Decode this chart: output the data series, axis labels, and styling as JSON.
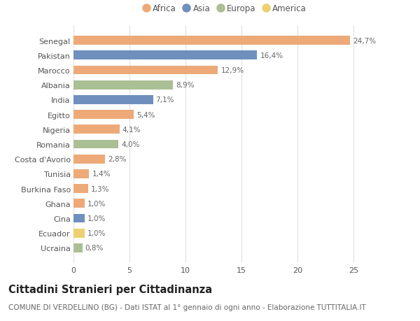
{
  "countries": [
    "Ucraina",
    "Ecuador",
    "Cina",
    "Ghana",
    "Burkina Faso",
    "Tunisia",
    "Costa d'Avorio",
    "Romania",
    "Nigeria",
    "Egitto",
    "India",
    "Albania",
    "Marocco",
    "Pakistan",
    "Senegal"
  ],
  "values": [
    0.8,
    1.0,
    1.0,
    1.0,
    1.3,
    1.4,
    2.8,
    4.0,
    4.1,
    5.4,
    7.1,
    8.9,
    12.9,
    16.4,
    24.7
  ],
  "labels": [
    "0,8%",
    "1,0%",
    "1,0%",
    "1,0%",
    "1,3%",
    "1,4%",
    "2,8%",
    "4,0%",
    "4,1%",
    "5,4%",
    "7,1%",
    "8,9%",
    "12,9%",
    "16,4%",
    "24,7%"
  ],
  "continents": [
    "Europa",
    "America",
    "Asia",
    "Africa",
    "Africa",
    "Africa",
    "Africa",
    "Europa",
    "Africa",
    "Africa",
    "Asia",
    "Europa",
    "Africa",
    "Asia",
    "Africa"
  ],
  "continent_colors": {
    "Africa": "#EDAA78",
    "Asia": "#6F8FBD",
    "Europa": "#AABF94",
    "America": "#EDD070"
  },
  "legend_order": [
    "Africa",
    "Asia",
    "Europa",
    "America"
  ],
  "title": "Cittadini Stranieri per Cittadinanza",
  "subtitle": "COMUNE DI VERDELLINO (BG) - Dati ISTAT al 1° gennaio di ogni anno - Elaborazione TUTTITALIA.IT",
  "xlim": [
    0,
    27
  ],
  "xticks": [
    0,
    5,
    10,
    15,
    20,
    25
  ],
  "background_color": "#ffffff",
  "grid_color": "#e0e0e0",
  "bar_height": 0.6,
  "title_fontsize": 10.5,
  "subtitle_fontsize": 7.5,
  "label_fontsize": 7.5,
  "tick_fontsize": 8,
  "legend_fontsize": 8.5
}
